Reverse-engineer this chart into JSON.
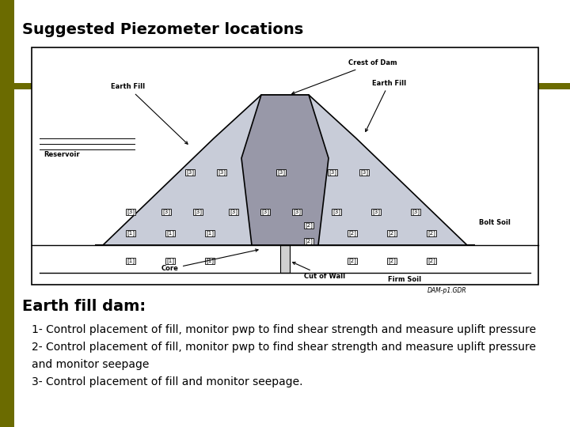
{
  "title": "Suggested Piezometer locations",
  "title_fontsize": 14,
  "title_color": "#000000",
  "background_color": "#ffffff",
  "sidebar_color": "#6b6b00",
  "earth_fill_dam_label": "Earth fill dam:",
  "earth_fill_dam_fontsize": 14,
  "description_lines": [
    "1- Control placement of fill, monitor pwp to find shear strength and measure uplift pressure",
    "2- Control placement of fill, monitor pwp to find shear strength and measure uplift pressure",
    "and monitor seepage",
    "3- Control placement of fill and monitor seepage."
  ],
  "description_fontsize": 10,
  "diagram_bg": "#ffffff",
  "diagram_border": "#000000",
  "dam_fill_color": "#c8ccd8",
  "core_fill_color": "#9898a8",
  "cutoff_fill_color": "#d0d0d0",
  "label_fontsize": 6.0,
  "piezo_fontsize": 5.0
}
